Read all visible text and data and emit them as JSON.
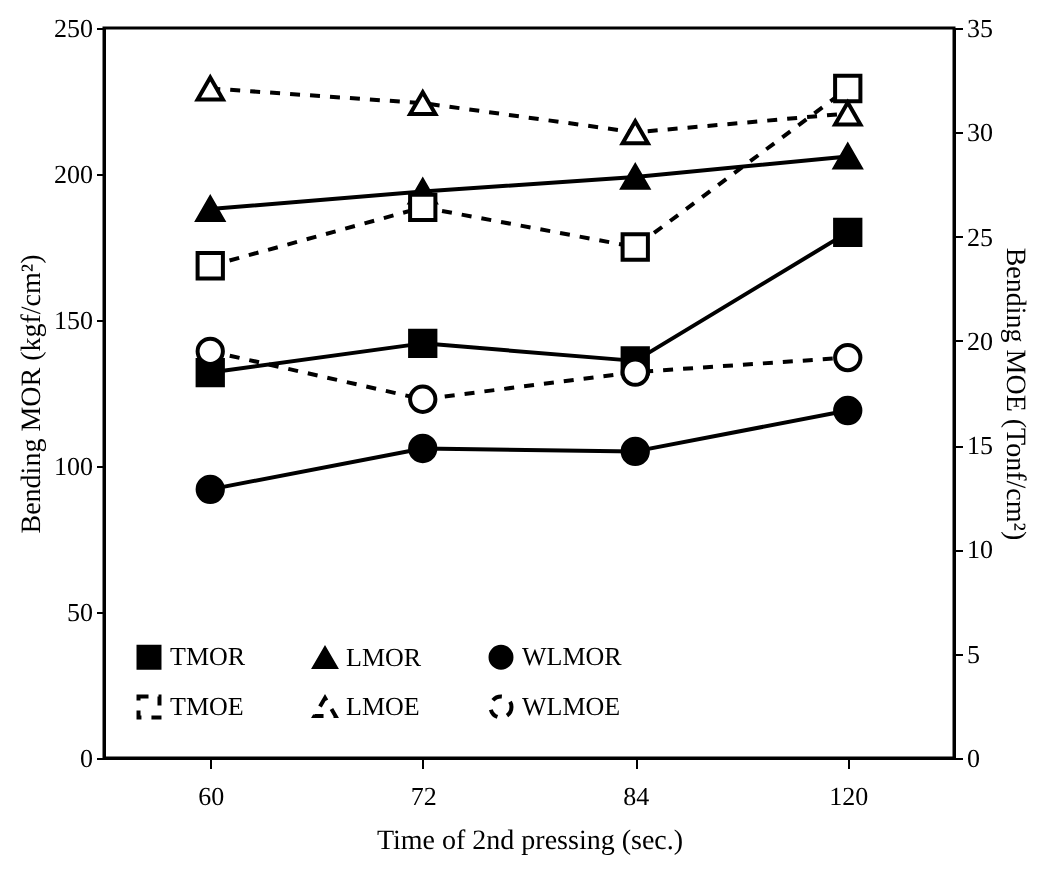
{
  "chart_data": {
    "type": "line",
    "xlabel": "Time of 2nd pressing (sec.)",
    "ylabel": "Bending MOR (kgf/cm²)",
    "y2label": "Bending MOE (Tonf/cm²)",
    "categories": [
      "60",
      "72",
      "84",
      "120"
    ],
    "ylim": [
      0,
      250
    ],
    "yticks": [
      0,
      50,
      100,
      150,
      200,
      250
    ],
    "y2lim": [
      0,
      35
    ],
    "y2ticks": [
      0,
      5,
      10,
      15,
      20,
      25,
      30,
      35
    ],
    "grid": false,
    "legend": "bottom",
    "series": [
      {
        "name": "TMOR",
        "color": "#000000",
        "marker": "square",
        "line_style": "solid",
        "values": [
          132,
          142,
          136,
          180
        ]
      },
      {
        "name": "LMOR",
        "color": "#000000",
        "marker": "triangle",
        "line_style": "solid",
        "values": [
          188,
          194,
          199,
          206
        ]
      },
      {
        "name": "WLMOR",
        "color": "#000000",
        "marker": "circle",
        "line_style": "solid",
        "values": [
          92,
          106,
          105,
          119
        ]
      },
      {
        "name": "TMOE",
        "color": "#000000",
        "marker": "square",
        "line_style": "dashed",
        "axis": "y2",
        "values": [
          23.6,
          26.4,
          24.5,
          32.1
        ]
      },
      {
        "name": "LMOE",
        "color": "#000000",
        "marker": "triangle",
        "line_style": "dashed",
        "axis": "y2",
        "values": [
          32.1,
          31.4,
          30.0,
          30.9
        ]
      },
      {
        "name": "WLMOE",
        "color": "#000000",
        "marker": "circle",
        "line_style": "dashed",
        "axis": "y2",
        "values": [
          19.5,
          17.2,
          18.5,
          19.2
        ]
      }
    ]
  }
}
